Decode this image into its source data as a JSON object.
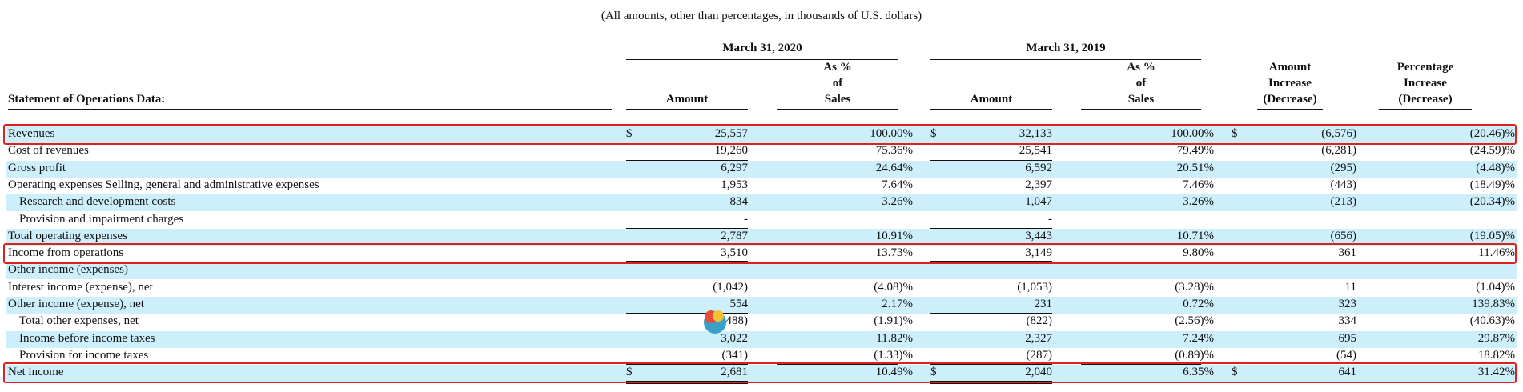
{
  "note": "(All amounts, other than percentages, in thousands of U.S. dollars)",
  "header": {
    "periods": [
      "March 31, 2020",
      "March 31, 2019"
    ],
    "row_label": "Statement of Operations Data:",
    "columns": [
      "Amount",
      [
        "As %",
        "of",
        "Sales"
      ],
      "Amount",
      [
        "As %",
        "of",
        "Sales"
      ],
      [
        "Amount",
        "Increase",
        "(Decrease)"
      ],
      [
        "Percentage",
        "Increase",
        "(Decrease)"
      ]
    ]
  },
  "table": {
    "rows": [
      {
        "label": "Revenues",
        "cells": [
          {
            "prefix": "$",
            "text": "25,557"
          },
          "100.00%",
          {
            "prefix": "$",
            "text": "32,133"
          },
          "100.00%",
          {
            "prefix": "$",
            "text": "(6,576)"
          },
          "(20.46)%"
        ]
      },
      {
        "label": "Cost of revenues",
        "cells": [
          "19,260",
          "75.36%",
          "25,541",
          "79.49%",
          "(6,281)",
          "(24.59)%"
        ]
      },
      {
        "label": "Gross profit",
        "cells": [
          "6,297",
          "24.64%",
          "6,592",
          "20.51%",
          "(295)",
          "(4.48)%"
        ]
      },
      {
        "label": "Operating expenses Selling, general and administrative expenses",
        "cells": [
          "1,953",
          "7.64%",
          "2,397",
          "7.46%",
          "(443)",
          "(18.49)%"
        ]
      },
      {
        "label": "Research and development costs",
        "cells": [
          "834",
          "3.26%",
          "1,047",
          "3.26%",
          "(213)",
          "(20.34)%"
        ]
      },
      {
        "label": "Provision and impairment charges",
        "cells": [
          "-",
          null,
          "-",
          null,
          null,
          null
        ]
      },
      {
        "label": "Total operating expenses",
        "cells": [
          "2,787",
          "10.91%",
          "3,443",
          "10.71%",
          "(656)",
          "(19.05)%"
        ]
      },
      {
        "label": "Income from operations",
        "cells": [
          "3,510",
          "13.73%",
          "3,149",
          "9.80%",
          "361",
          "11.46%"
        ]
      },
      {
        "label": "Other income (expenses)",
        "cells": [
          null,
          null,
          null,
          null,
          null,
          null
        ]
      },
      {
        "label": "Interest income (expense), net",
        "cells": [
          "(1,042)",
          "(4.08)%",
          "(1,053)",
          "(3.28)%",
          "11",
          "(1.04)%"
        ]
      },
      {
        "label": "Other income (expense), net",
        "cells": [
          "554",
          "2.17%",
          "231",
          "0.72%",
          "323",
          "139.83%"
        ]
      },
      {
        "label": "Total other expenses, net",
        "cells": [
          "(488)",
          "(1.91)%",
          "(822)",
          "(2.56)%",
          "334",
          "(40.63)%"
        ]
      },
      {
        "label": "Income before income taxes",
        "cells": [
          "3,022",
          "11.82%",
          "2,327",
          "7.24%",
          "695",
          "29.87%"
        ]
      },
      {
        "label": "Provision for income taxes",
        "cells": [
          "(341)",
          "(1.33)%",
          "(287)",
          "(0.89)%",
          "(54)",
          "18.82%"
        ]
      },
      {
        "label": "Net income",
        "cells": [
          {
            "prefix": "$",
            "text": "2,681"
          },
          "10.49%",
          {
            "prefix": "$",
            "text": "2,040"
          },
          "6.35%",
          {
            "prefix": "$",
            "text": "641"
          },
          "31.42%"
        ]
      }
    ]
  }
}
